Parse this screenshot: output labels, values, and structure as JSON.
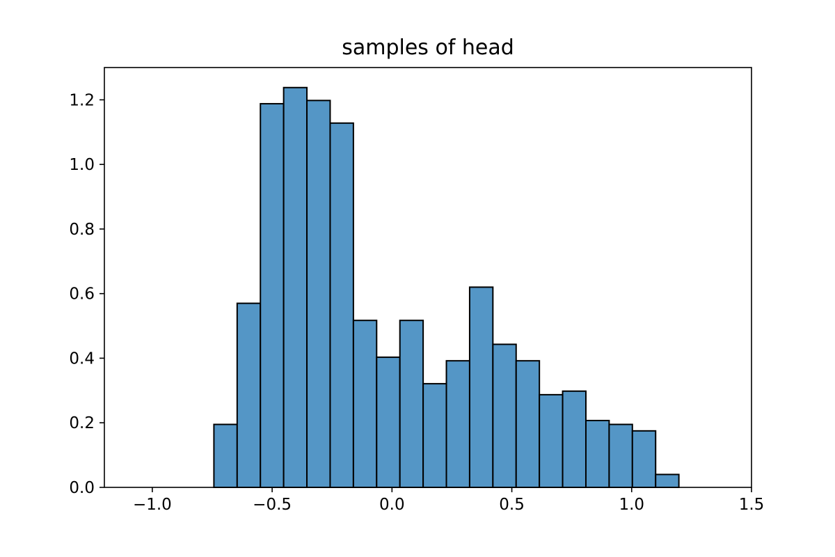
{
  "chart_data": {
    "type": "histogram",
    "title": "samples of head",
    "xlabel": "",
    "ylabel": "",
    "xlim": [
      -1.2,
      1.5
    ],
    "ylim": [
      0,
      1.3
    ],
    "grid": false,
    "x_ticks": [
      -1.0,
      -0.5,
      0.0,
      0.5,
      1.0,
      1.5
    ],
    "x_tick_labels": [
      "−1.0",
      "−0.5",
      "0.0",
      "0.5",
      "1.0",
      "1.5"
    ],
    "y_ticks": [
      0.0,
      0.2,
      0.4,
      0.6,
      0.8,
      1.0,
      1.2
    ],
    "y_tick_labels": [
      "0.0",
      "0.2",
      "0.4",
      "0.6",
      "0.8",
      "1.0",
      "1.2"
    ],
    "bar_color": "#5496c6",
    "edge_color": "#000000",
    "bins": [
      {
        "x0": -0.743,
        "x1": -0.646,
        "density": 0.195
      },
      {
        "x0": -0.646,
        "x1": -0.549,
        "density": 0.57
      },
      {
        "x0": -0.549,
        "x1": -0.452,
        "density": 1.188
      },
      {
        "x0": -0.452,
        "x1": -0.355,
        "density": 1.238
      },
      {
        "x0": -0.355,
        "x1": -0.258,
        "density": 1.198
      },
      {
        "x0": -0.258,
        "x1": -0.161,
        "density": 1.128
      },
      {
        "x0": -0.161,
        "x1": -0.064,
        "density": 0.517
      },
      {
        "x0": -0.064,
        "x1": 0.033,
        "density": 0.403
      },
      {
        "x0": 0.033,
        "x1": 0.13,
        "density": 0.517
      },
      {
        "x0": 0.13,
        "x1": 0.227,
        "density": 0.321
      },
      {
        "x0": 0.227,
        "x1": 0.324,
        "density": 0.392
      },
      {
        "x0": 0.324,
        "x1": 0.421,
        "density": 0.62
      },
      {
        "x0": 0.421,
        "x1": 0.518,
        "density": 0.443
      },
      {
        "x0": 0.518,
        "x1": 0.615,
        "density": 0.392
      },
      {
        "x0": 0.615,
        "x1": 0.712,
        "density": 0.287
      },
      {
        "x0": 0.712,
        "x1": 0.809,
        "density": 0.298
      },
      {
        "x0": 0.809,
        "x1": 0.906,
        "density": 0.207
      },
      {
        "x0": 0.906,
        "x1": 1.003,
        "density": 0.195
      },
      {
        "x0": 1.003,
        "x1": 1.1,
        "density": 0.175
      },
      {
        "x0": 1.1,
        "x1": 1.197,
        "density": 0.04
      }
    ]
  }
}
